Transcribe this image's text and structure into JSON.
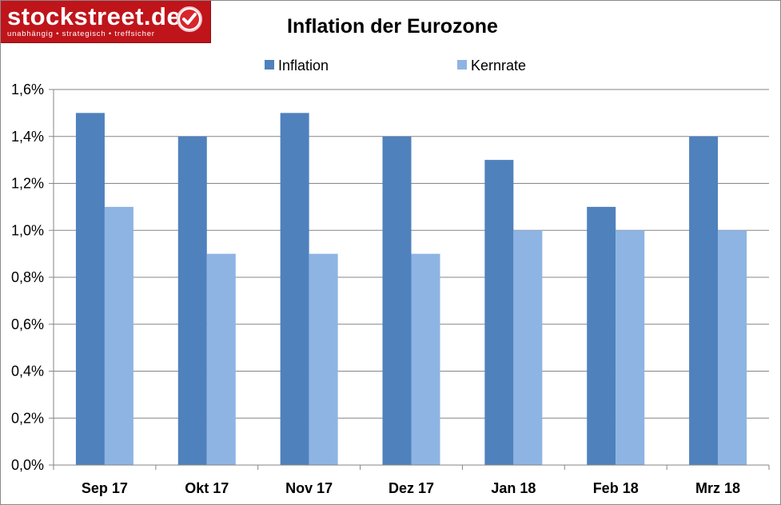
{
  "logo": {
    "name": "stockstreet.de",
    "tagline": "unabhängig • strategisch • treffsicher"
  },
  "colors": {
    "logo_bg": "#c0141b",
    "inflation": "#4f81bd",
    "kernrate": "#8eb4e3",
    "grid": "#868686"
  },
  "chart_data": {
    "type": "bar",
    "title": "Inflation der Eurozone",
    "categories": [
      "Sep 17",
      "Okt 17",
      "Nov 17",
      "Dez 17",
      "Jan 18",
      "Feb 18",
      "Mrz 18"
    ],
    "series": [
      {
        "name": "Inflation",
        "values": [
          1.5,
          1.4,
          1.5,
          1.4,
          1.3,
          1.1,
          1.4
        ]
      },
      {
        "name": "Kernrate",
        "values": [
          1.1,
          0.9,
          0.9,
          0.9,
          1.0,
          1.0,
          1.0
        ]
      }
    ],
    "yticks": [
      "0,0%",
      "0,2%",
      "0,4%",
      "0,6%",
      "0,8%",
      "1,0%",
      "1,2%",
      "1,4%",
      "1,6%"
    ],
    "ylim": [
      0,
      1.6
    ],
    "grid": true,
    "legend_position": "top"
  }
}
